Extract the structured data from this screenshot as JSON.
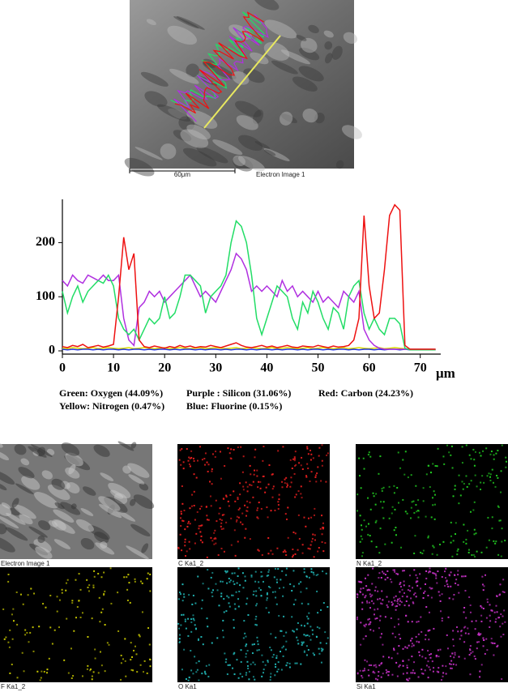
{
  "sem_image": {
    "scale_bar": "60μm",
    "label": "Electron Image 1"
  },
  "chart_data": {
    "type": "line",
    "x_label": "μm",
    "x": [
      0,
      1,
      2,
      3,
      4,
      5,
      6,
      7,
      8,
      9,
      10,
      11,
      12,
      13,
      14,
      15,
      16,
      17,
      18,
      19,
      20,
      21,
      22,
      23,
      24,
      25,
      26,
      27,
      28,
      29,
      30,
      31,
      32,
      33,
      34,
      35,
      36,
      37,
      38,
      39,
      40,
      41,
      42,
      43,
      44,
      45,
      46,
      47,
      48,
      49,
      50,
      51,
      52,
      53,
      54,
      55,
      56,
      57,
      58,
      59,
      60,
      61,
      62,
      63,
      64,
      65,
      66,
      67,
      68,
      69,
      70,
      71,
      72,
      73
    ],
    "xlim": [
      0,
      74
    ],
    "xticks": [
      0,
      10,
      20,
      30,
      40,
      50,
      60,
      70
    ],
    "ylim": [
      0,
      280
    ],
    "yticks": [
      0,
      100,
      200
    ],
    "series": [
      {
        "name": "Green: Oxygen (44.09%)",
        "color": "#22dd66",
        "values": [
          110,
          70,
          100,
          120,
          90,
          110,
          120,
          130,
          125,
          140,
          120,
          60,
          40,
          30,
          40,
          20,
          40,
          60,
          50,
          60,
          100,
          60,
          70,
          100,
          140,
          140,
          130,
          120,
          70,
          100,
          110,
          120,
          140,
          200,
          240,
          230,
          200,
          140,
          60,
          30,
          60,
          90,
          120,
          110,
          100,
          60,
          40,
          90,
          70,
          110,
          90,
          60,
          40,
          80,
          70,
          40,
          100,
          120,
          130,
          70,
          40,
          60,
          40,
          30,
          60,
          60,
          50,
          5,
          2,
          2,
          2,
          2,
          2,
          2
        ]
      },
      {
        "name": "Purple : Silicon (31.06%)",
        "color": "#b030e0",
        "values": [
          130,
          120,
          140,
          130,
          125,
          140,
          135,
          130,
          140,
          130,
          130,
          140,
          60,
          20,
          10,
          80,
          90,
          110,
          100,
          110,
          90,
          100,
          110,
          120,
          130,
          140,
          120,
          100,
          110,
          100,
          90,
          110,
          130,
          150,
          180,
          170,
          150,
          110,
          120,
          110,
          120,
          110,
          100,
          130,
          110,
          120,
          100,
          110,
          100,
          90,
          110,
          90,
          100,
          90,
          80,
          110,
          100,
          90,
          110,
          40,
          20,
          10,
          5,
          3,
          3,
          3,
          3,
          3,
          3,
          3,
          3,
          3,
          3,
          3
        ]
      },
      {
        "name": "Red: Carbon (24.23%)",
        "color": "#ee1111",
        "values": [
          8,
          6,
          10,
          8,
          12,
          6,
          8,
          10,
          7,
          9,
          12,
          100,
          210,
          150,
          180,
          20,
          8,
          6,
          9,
          7,
          5,
          8,
          6,
          10,
          7,
          9,
          6,
          8,
          7,
          10,
          8,
          6,
          9,
          12,
          15,
          10,
          7,
          6,
          8,
          10,
          7,
          9,
          6,
          8,
          10,
          7,
          6,
          9,
          8,
          7,
          10,
          8,
          6,
          9,
          7,
          8,
          10,
          20,
          60,
          250,
          120,
          60,
          70,
          150,
          250,
          270,
          260,
          10,
          3,
          3,
          3,
          3,
          3,
          3
        ]
      },
      {
        "name": "Yellow: Nitrogen (0.47%)",
        "color": "#dddd00",
        "values": [
          5,
          4,
          6,
          5,
          4,
          5,
          6,
          4,
          5,
          6,
          5,
          4,
          5,
          6,
          4,
          5,
          6,
          5,
          4,
          5,
          6,
          4,
          5,
          6,
          5,
          4,
          5,
          6,
          4,
          5,
          6,
          5,
          4,
          5,
          6,
          4,
          5,
          6,
          5,
          4,
          5,
          6,
          4,
          5,
          6,
          5,
          4,
          5,
          6,
          4,
          5,
          6,
          5,
          4,
          5,
          6,
          4,
          5,
          6,
          5,
          4,
          5,
          6,
          4,
          5,
          6,
          5,
          4,
          3,
          3,
          3,
          3,
          3,
          3
        ]
      },
      {
        "name": "Blue: Fluorine (0.15%)",
        "color": "#2233dd",
        "values": [
          3,
          2,
          3,
          2,
          3,
          3,
          2,
          3,
          2,
          3,
          3,
          2,
          3,
          2,
          3,
          3,
          2,
          3,
          2,
          3,
          3,
          2,
          3,
          2,
          3,
          3,
          2,
          3,
          2,
          3,
          3,
          2,
          3,
          2,
          3,
          3,
          2,
          3,
          2,
          3,
          3,
          2,
          3,
          2,
          3,
          3,
          2,
          3,
          2,
          3,
          3,
          2,
          3,
          2,
          3,
          3,
          2,
          3,
          2,
          3,
          3,
          2,
          3,
          2,
          3,
          3,
          2,
          3,
          2,
          2,
          2,
          2,
          2,
          2
        ]
      }
    ]
  },
  "maps": [
    "Electron Image 1",
    "C Ka1_2",
    "N Ka1_2",
    "F Ka1_2",
    "O Ka1",
    "Si Ka1"
  ]
}
